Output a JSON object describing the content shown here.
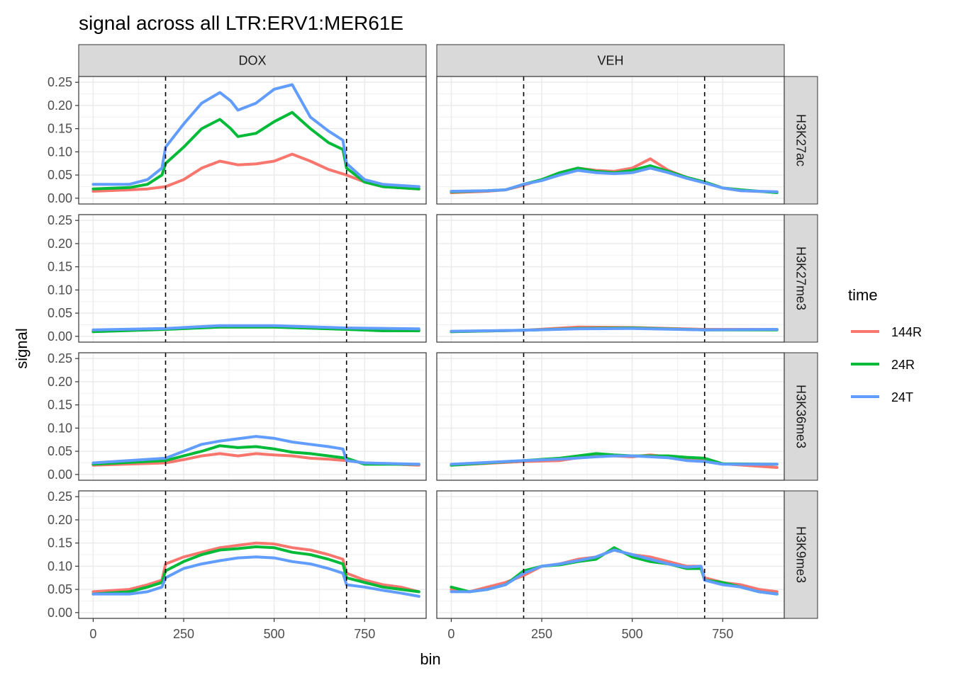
{
  "chart_data": {
    "type": "line",
    "title": "signal across all LTR:ERV1:MER61E",
    "xlabel": "bin",
    "ylabel": "signal",
    "xlim": [
      -40,
      920
    ],
    "ylim": [
      -0.0125,
      0.2625
    ],
    "x_ticks": [
      0,
      250,
      500,
      750
    ],
    "x_tick_labels": [
      "0",
      "250",
      "500",
      "750"
    ],
    "y_ticks": [
      0,
      0.05,
      0.1,
      0.15,
      0.2,
      0.25
    ],
    "y_tick_labels": [
      "0.00",
      "0.05",
      "0.10",
      "0.15",
      "0.20",
      "0.25"
    ],
    "vlines": [
      200,
      700
    ],
    "grid": true,
    "columns": [
      "DOX",
      "VEH"
    ],
    "rows": [
      "H3K27ac",
      "H3K27me3",
      "H3K36me3",
      "H3K9me3"
    ],
    "legend": {
      "title": "time",
      "position": "right",
      "entries": [
        {
          "label": "144R",
          "color": "#F8766D"
        },
        {
          "label": "24R",
          "color": "#00BA38"
        },
        {
          "label": "24T",
          "color": "#619CFF"
        }
      ]
    },
    "panels": [
      {
        "col": "DOX",
        "row": "H3K27ac",
        "series": [
          {
            "name": "144R",
            "x": [
              0,
              100,
              150,
              200,
              250,
              300,
              350,
              400,
              450,
              500,
              550,
              600,
              650,
              700,
              750,
              800,
              900
            ],
            "y": [
              0.015,
              0.018,
              0.02,
              0.025,
              0.04,
              0.065,
              0.08,
              0.072,
              0.074,
              0.08,
              0.095,
              0.08,
              0.062,
              0.05,
              0.035,
              0.025,
              0.02
            ]
          },
          {
            "name": "24R",
            "x": [
              0,
              100,
              150,
              190,
              200,
              250,
              300,
              350,
              380,
              400,
              450,
              500,
              550,
              600,
              650,
              690,
              700,
              750,
              800,
              900
            ],
            "y": [
              0.02,
              0.023,
              0.03,
              0.05,
              0.075,
              0.11,
              0.15,
              0.17,
              0.15,
              0.133,
              0.14,
              0.165,
              0.185,
              0.15,
              0.12,
              0.105,
              0.065,
              0.035,
              0.025,
              0.02
            ]
          },
          {
            "name": "24T",
            "x": [
              0,
              100,
              150,
              190,
              200,
              250,
              300,
              350,
              380,
              400,
              450,
              500,
              550,
              600,
              650,
              690,
              700,
              750,
              800,
              900
            ],
            "y": [
              0.03,
              0.03,
              0.04,
              0.065,
              0.11,
              0.16,
              0.205,
              0.228,
              0.21,
              0.19,
              0.205,
              0.235,
              0.245,
              0.175,
              0.145,
              0.125,
              0.075,
              0.04,
              0.03,
              0.025
            ]
          }
        ]
      },
      {
        "col": "VEH",
        "row": "H3K27ac",
        "series": [
          {
            "name": "144R",
            "x": [
              0,
              100,
              150,
              200,
              250,
              300,
              350,
              400,
              450,
              500,
              550,
              580,
              600,
              650,
              700,
              750,
              800,
              900
            ],
            "y": [
              0.012,
              0.015,
              0.018,
              0.028,
              0.04,
              0.055,
              0.065,
              0.06,
              0.058,
              0.065,
              0.085,
              0.07,
              0.06,
              0.045,
              0.035,
              0.022,
              0.016,
              0.013
            ]
          },
          {
            "name": "24R",
            "x": [
              0,
              100,
              150,
              200,
              250,
              300,
              350,
              400,
              450,
              500,
              550,
              600,
              650,
              700,
              750,
              800,
              900
            ],
            "y": [
              0.014,
              0.016,
              0.018,
              0.03,
              0.04,
              0.055,
              0.065,
              0.058,
              0.055,
              0.06,
              0.07,
              0.058,
              0.045,
              0.035,
              0.022,
              0.018,
              0.012
            ]
          },
          {
            "name": "24T",
            "x": [
              0,
              100,
              150,
              200,
              250,
              300,
              350,
              400,
              450,
              500,
              550,
              600,
              650,
              700,
              750,
              800,
              900
            ],
            "y": [
              0.015,
              0.016,
              0.018,
              0.03,
              0.038,
              0.05,
              0.06,
              0.055,
              0.053,
              0.055,
              0.065,
              0.055,
              0.043,
              0.033,
              0.022,
              0.016,
              0.014
            ]
          }
        ]
      },
      {
        "col": "DOX",
        "row": "H3K27me3",
        "series": [
          {
            "name": "144R",
            "x": [
              0,
              200,
              350,
              500,
              700,
              900
            ],
            "y": [
              0.012,
              0.016,
              0.02,
              0.02,
              0.016,
              0.014
            ]
          },
          {
            "name": "24R",
            "x": [
              0,
              200,
              350,
              500,
              700,
              800,
              900
            ],
            "y": [
              0.01,
              0.015,
              0.02,
              0.02,
              0.015,
              0.012,
              0.012
            ]
          },
          {
            "name": "24T",
            "x": [
              0,
              200,
              350,
              500,
              700,
              900
            ],
            "y": [
              0.014,
              0.017,
              0.023,
              0.023,
              0.018,
              0.016
            ]
          }
        ]
      },
      {
        "col": "VEH",
        "row": "H3K27me3",
        "series": [
          {
            "name": "144R",
            "x": [
              0,
              200,
              350,
              500,
              700,
              900
            ],
            "y": [
              0.01,
              0.013,
              0.02,
              0.019,
              0.015,
              0.015
            ]
          },
          {
            "name": "24R",
            "x": [
              0,
              200,
              350,
              500,
              700,
              900
            ],
            "y": [
              0.01,
              0.013,
              0.017,
              0.018,
              0.014,
              0.014
            ]
          },
          {
            "name": "24T",
            "x": [
              0,
              200,
              350,
              500,
              700,
              900
            ],
            "y": [
              0.011,
              0.013,
              0.016,
              0.017,
              0.014,
              0.015
            ]
          }
        ]
      },
      {
        "col": "DOX",
        "row": "H3K36me3",
        "series": [
          {
            "name": "144R",
            "x": [
              0,
              200,
              250,
              300,
              350,
              400,
              450,
              500,
              550,
              600,
              650,
              700,
              750,
              900
            ],
            "y": [
              0.02,
              0.025,
              0.032,
              0.04,
              0.045,
              0.04,
              0.045,
              0.042,
              0.04,
              0.035,
              0.033,
              0.03,
              0.025,
              0.02
            ]
          },
          {
            "name": "24R",
            "x": [
              0,
              200,
              250,
              300,
              350,
              400,
              450,
              500,
              550,
              600,
              650,
              700,
              750,
              900
            ],
            "y": [
              0.022,
              0.03,
              0.04,
              0.05,
              0.062,
              0.058,
              0.06,
              0.055,
              0.048,
              0.045,
              0.04,
              0.035,
              0.022,
              0.022
            ]
          },
          {
            "name": "24T",
            "x": [
              0,
              200,
              250,
              300,
              350,
              400,
              450,
              500,
              550,
              600,
              650,
              690,
              700,
              750,
              900
            ],
            "y": [
              0.025,
              0.035,
              0.05,
              0.065,
              0.072,
              0.077,
              0.082,
              0.078,
              0.07,
              0.065,
              0.06,
              0.055,
              0.03,
              0.025,
              0.022
            ]
          }
        ]
      },
      {
        "col": "VEH",
        "row": "H3K36me3",
        "series": [
          {
            "name": "144R",
            "x": [
              0,
              200,
              300,
              400,
              450,
              500,
              550,
              600,
              650,
              700,
              750,
              900
            ],
            "y": [
              0.02,
              0.028,
              0.03,
              0.042,
              0.04,
              0.038,
              0.042,
              0.038,
              0.035,
              0.03,
              0.023,
              0.015
            ]
          },
          {
            "name": "24R",
            "x": [
              0,
              200,
              300,
              400,
              450,
              500,
              550,
              600,
              650,
              700,
              750,
              900
            ],
            "y": [
              0.02,
              0.03,
              0.035,
              0.045,
              0.042,
              0.04,
              0.04,
              0.04,
              0.037,
              0.035,
              0.023,
              0.022
            ]
          },
          {
            "name": "24T",
            "x": [
              0,
              200,
              300,
              400,
              450,
              500,
              550,
              600,
              650,
              700,
              750,
              900
            ],
            "y": [
              0.022,
              0.03,
              0.033,
              0.038,
              0.04,
              0.04,
              0.038,
              0.036,
              0.03,
              0.028,
              0.022,
              0.022
            ]
          }
        ]
      },
      {
        "col": "DOX",
        "row": "H3K9me3",
        "series": [
          {
            "name": "144R",
            "x": [
              0,
              100,
              150,
              190,
              200,
              250,
              300,
              350,
              400,
              450,
              500,
              550,
              600,
              650,
              690,
              700,
              750,
              800,
              850,
              900
            ],
            "y": [
              0.045,
              0.05,
              0.06,
              0.07,
              0.105,
              0.12,
              0.13,
              0.14,
              0.145,
              0.15,
              0.148,
              0.14,
              0.135,
              0.125,
              0.115,
              0.085,
              0.07,
              0.06,
              0.055,
              0.045
            ]
          },
          {
            "name": "24R",
            "x": [
              0,
              100,
              150,
              190,
              200,
              250,
              300,
              350,
              400,
              450,
              500,
              550,
              600,
              650,
              690,
              700,
              750,
              800,
              850,
              900
            ],
            "y": [
              0.04,
              0.045,
              0.055,
              0.065,
              0.09,
              0.11,
              0.125,
              0.135,
              0.138,
              0.142,
              0.14,
              0.13,
              0.125,
              0.115,
              0.105,
              0.075,
              0.065,
              0.055,
              0.05,
              0.045
            ]
          },
          {
            "name": "24T",
            "x": [
              0,
              100,
              150,
              190,
              200,
              250,
              300,
              350,
              400,
              450,
              500,
              550,
              600,
              650,
              690,
              700,
              750,
              800,
              850,
              900
            ],
            "y": [
              0.04,
              0.04,
              0.045,
              0.055,
              0.075,
              0.095,
              0.105,
              0.112,
              0.118,
              0.12,
              0.118,
              0.11,
              0.105,
              0.095,
              0.085,
              0.06,
              0.055,
              0.048,
              0.042,
              0.035
            ]
          }
        ]
      },
      {
        "col": "VEH",
        "row": "H3K9me3",
        "series": [
          {
            "name": "144R",
            "x": [
              0,
              50,
              100,
              150,
              200,
              250,
              300,
              350,
              400,
              450,
              500,
              550,
              600,
              650,
              690,
              700,
              750,
              800,
              850,
              900
            ],
            "y": [
              0.05,
              0.045,
              0.055,
              0.065,
              0.08,
              0.1,
              0.105,
              0.115,
              0.12,
              0.135,
              0.125,
              0.12,
              0.11,
              0.1,
              0.1,
              0.075,
              0.065,
              0.06,
              0.05,
              0.045
            ]
          },
          {
            "name": "24R",
            "x": [
              0,
              50,
              100,
              150,
              200,
              250,
              300,
              350,
              400,
              450,
              500,
              550,
              600,
              650,
              690,
              700,
              750,
              800,
              850,
              900
            ],
            "y": [
              0.055,
              0.045,
              0.05,
              0.06,
              0.09,
              0.1,
              0.103,
              0.11,
              0.115,
              0.14,
              0.12,
              0.11,
              0.105,
              0.095,
              0.095,
              0.07,
              0.065,
              0.055,
              0.045,
              0.04
            ]
          },
          {
            "name": "24T",
            "x": [
              0,
              50,
              100,
              150,
              200,
              250,
              300,
              350,
              400,
              450,
              500,
              550,
              600,
              650,
              690,
              700,
              750,
              800,
              850,
              900
            ],
            "y": [
              0.045,
              0.045,
              0.05,
              0.06,
              0.085,
              0.1,
              0.105,
              0.112,
              0.12,
              0.135,
              0.125,
              0.115,
              0.105,
              0.098,
              0.1,
              0.07,
              0.06,
              0.055,
              0.045,
              0.04
            ]
          }
        ]
      }
    ]
  }
}
